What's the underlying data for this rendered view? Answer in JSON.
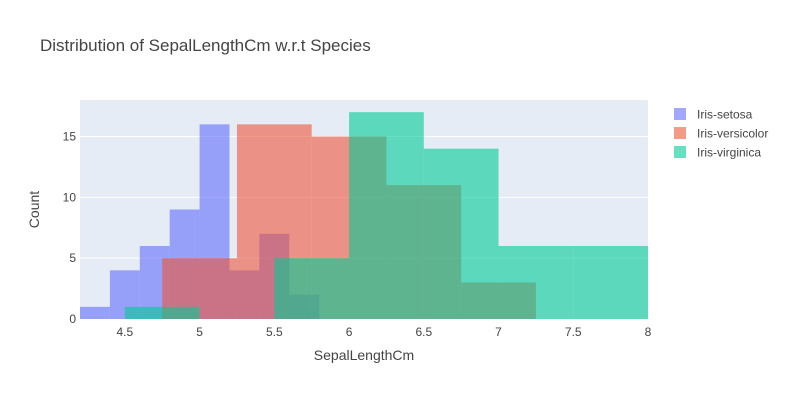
{
  "chart_data": {
    "type": "bar",
    "subtype": "overlaid-histogram",
    "title": "Distribution of SepalLengthCm w.r.t Species",
    "xlabel": "SepalLengthCm",
    "ylabel": "Count",
    "xlim": [
      4.2,
      8
    ],
    "ylim": [
      0,
      18
    ],
    "xticks": [
      4.5,
      5,
      5.5,
      6,
      6.5,
      7,
      7.5,
      8
    ],
    "yticks": [
      0,
      5,
      10,
      15
    ],
    "grid": true,
    "legend_position": "top-right",
    "series": [
      {
        "name": "Iris-setosa",
        "color": "#636efa",
        "bins": [
          {
            "x0": 4.2,
            "x1": 4.4,
            "count": 1
          },
          {
            "x0": 4.4,
            "x1": 4.6,
            "count": 4
          },
          {
            "x0": 4.6,
            "x1": 4.8,
            "count": 6
          },
          {
            "x0": 4.8,
            "x1": 5.0,
            "count": 9
          },
          {
            "x0": 5.0,
            "x1": 5.2,
            "count": 16
          },
          {
            "x0": 5.2,
            "x1": 5.4,
            "count": 4
          },
          {
            "x0": 5.4,
            "x1": 5.6,
            "count": 7
          },
          {
            "x0": 5.6,
            "x1": 5.8,
            "count": 2
          }
        ]
      },
      {
        "name": "Iris-versicolor",
        "color": "#ef553b",
        "bins": [
          {
            "x0": 4.75,
            "x1": 5.25,
            "count": 5
          },
          {
            "x0": 5.25,
            "x1": 5.75,
            "count": 16
          },
          {
            "x0": 5.75,
            "x1": 6.25,
            "count": 15
          },
          {
            "x0": 6.25,
            "x1": 6.75,
            "count": 11
          },
          {
            "x0": 6.75,
            "x1": 7.25,
            "count": 3
          }
        ]
      },
      {
        "name": "Iris-virginica",
        "color": "#00cc96",
        "bins": [
          {
            "x0": 4.5,
            "x1": 5.0,
            "count": 1
          },
          {
            "x0": 5.5,
            "x1": 6.0,
            "count": 5
          },
          {
            "x0": 6.0,
            "x1": 6.5,
            "count": 17
          },
          {
            "x0": 6.5,
            "x1": 7.0,
            "count": 14
          },
          {
            "x0": 7.0,
            "x1": 7.5,
            "count": 6
          },
          {
            "x0": 7.5,
            "x1": 8.0,
            "count": 6
          }
        ]
      }
    ]
  }
}
